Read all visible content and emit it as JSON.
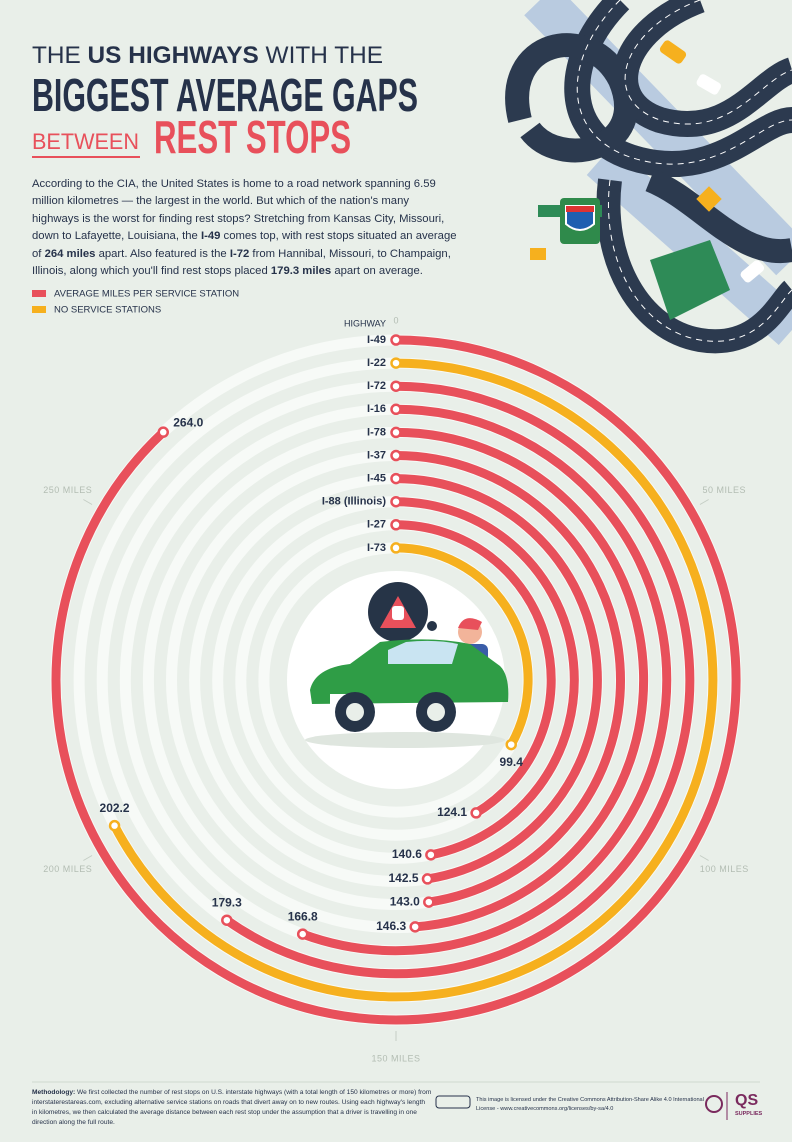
{
  "header": {
    "title": [
      {
        "text": "THE ",
        "strong": false
      },
      {
        "text": "US HIGHWAYS",
        "strong": true
      },
      {
        "text": " WITH THE",
        "strong": false
      }
    ],
    "title_line2": "BIGGEST AVERAGE GAPS",
    "title_line3a": "BETWEEN",
    "title_line3b": "REST STOPS",
    "intro": [
      {
        "text": "According to the CIA, the United States is home to a road network spanning 6.59 million kilometres — the largest in the world. But which of the nation's many highways is the worst for finding rest stops? Stretching from Kansas City, Missouri, down to Lafayette, Louisiana, the ",
        "strong": false
      },
      {
        "text": "I-49",
        "strong": true
      },
      {
        "text": " comes top, with rest stops situated an average of ",
        "strong": false
      },
      {
        "text": "264 miles",
        "strong": true
      },
      {
        "text": " apart. Also featured is the ",
        "strong": false
      },
      {
        "text": "I-72",
        "strong": true
      },
      {
        "text": " from Hannibal, Missouri, to Champaign, Illinois, along which you'll find rest stops placed ",
        "strong": false
      },
      {
        "text": "179.3 miles",
        "strong": true
      },
      {
        "text": " apart on average.",
        "strong": false
      }
    ]
  },
  "chart_data": {
    "type": "radial_bar",
    "axis_label": "HIGHWAY",
    "categories": [
      "I-49",
      "I-22",
      "I-72",
      "I-16",
      "I-78",
      "I-37",
      "I-45",
      "I-88 (Illinois)",
      "I-27",
      "I-73"
    ],
    "series": [
      {
        "name": "AVERAGE MILES PER SERVICE STATION",
        "color": "#e8505b",
        "values": [
          264.0,
          null,
          179.3,
          166.8,
          146.3,
          143.0,
          142.5,
          140.6,
          124.1,
          null
        ],
        "value_labels": [
          "264.0",
          null,
          "179.3",
          "166.8",
          "146.3",
          "143.0",
          "142.5",
          "140.6",
          "124.1",
          null
        ]
      },
      {
        "name": "NO SERVICE STATIONS",
        "color": "#f6b01e",
        "values": [
          null,
          202.2,
          null,
          null,
          null,
          null,
          null,
          null,
          null,
          99.4
        ],
        "value_labels": [
          null,
          "202.2",
          null,
          null,
          null,
          null,
          null,
          null,
          null,
          "99.4"
        ]
      }
    ],
    "xlim": [
      0,
      300
    ],
    "xticks": [
      0,
      {
        "value": 50,
        "label": "50 MILES"
      },
      {
        "value": 100,
        "label": "100 MILES"
      },
      {
        "value": 150,
        "label": "150 MILES"
      },
      {
        "value": 200,
        "label": "200 MILES"
      },
      {
        "value": 250,
        "label": "250 MILES"
      }
    ]
  },
  "footer": {
    "methodology": [
      {
        "text": "Methodology:",
        "strong": true
      },
      {
        "text": " We first collected the number of rest stops on U.S. interstate highways (with a total length of 150 kilometres or more) from interstaterestareas.com, excluding alternative service stations on roads that divert away on to new routes. Using each highway's length in kilometres, we then calculated the average distance between each rest stop under the assumption that a driver is travelling in one direction along the full route.",
        "strong": false
      }
    ],
    "license": "This image is licensed under the Creative Commons Attribution-Share Alike 4.0 International License - www.creativecommons.org/licenses/by-sa/4.0",
    "logo": "QS",
    "logo_sub": "SUPPLIES"
  }
}
